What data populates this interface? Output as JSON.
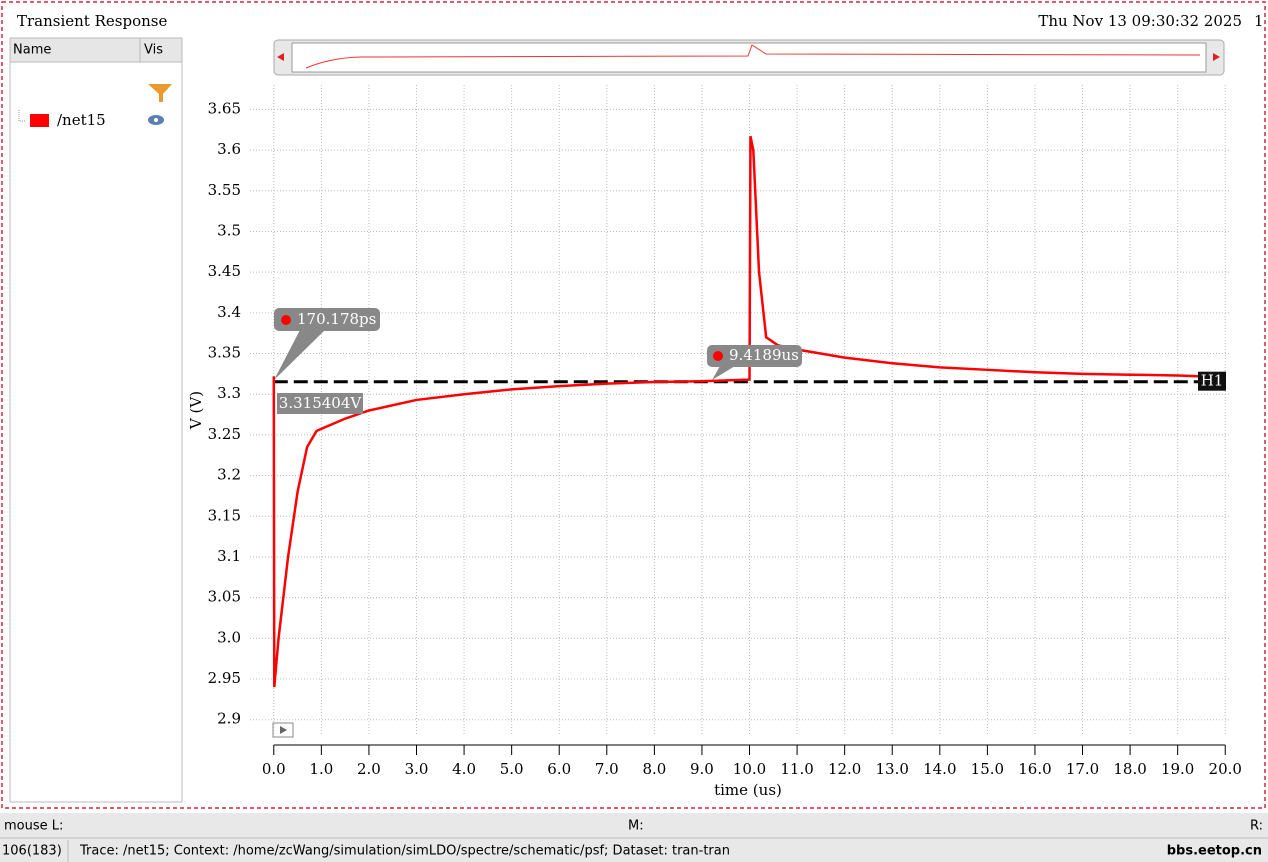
{
  "header": {
    "title": "Transient Response",
    "timestamp": "Thu Nov 13 09:30:32 2025",
    "page": "1"
  },
  "sidebar": {
    "columns": [
      "Name",
      "Vis"
    ],
    "traces": [
      "/net15"
    ]
  },
  "chart_data": {
    "type": "line",
    "xlabel": "time (us)",
    "ylabel": "V (V)",
    "xlim": [
      -0.5,
      20.1
    ],
    "ylim": [
      2.88,
      3.68
    ],
    "xticks": [
      {
        "value": 0,
        "label": "0.0"
      },
      {
        "value": 1,
        "label": "1.0"
      },
      {
        "value": 2,
        "label": "2.0"
      },
      {
        "value": 3,
        "label": "3.0"
      },
      {
        "value": 4,
        "label": "4.0"
      },
      {
        "value": 5,
        "label": "5.0"
      },
      {
        "value": 6,
        "label": "6.0"
      },
      {
        "value": 7,
        "label": "7.0"
      },
      {
        "value": 8,
        "label": "8.0"
      },
      {
        "value": 9,
        "label": "9.0"
      },
      {
        "value": 10,
        "label": "10.0"
      },
      {
        "value": 11,
        "label": "11.0"
      },
      {
        "value": 12,
        "label": "12.0"
      },
      {
        "value": 13,
        "label": "13.0"
      },
      {
        "value": 14,
        "label": "14.0"
      },
      {
        "value": 15,
        "label": "15.0"
      },
      {
        "value": 16,
        "label": "16.0"
      },
      {
        "value": 17,
        "label": "17.0"
      },
      {
        "value": 18,
        "label": "18.0"
      },
      {
        "value": 19,
        "label": "19.0"
      },
      {
        "value": 20,
        "label": "20.0"
      }
    ],
    "yticks": [
      3.65,
      3.6,
      3.55,
      3.5,
      3.45,
      3.4,
      3.35,
      3.3,
      3.25,
      3.2,
      3.15,
      3.1,
      3.05,
      {
        "value": 3.0,
        "label": "3.0"
      },
      2.95,
      2.9
    ],
    "grid": true,
    "series": [
      {
        "name": "/net15",
        "color": "#ff0000",
        "x": [
          0,
          0.01,
          0.1,
          0.3,
          0.5,
          0.7,
          0.9,
          1.5,
          2,
          3,
          4,
          5,
          6,
          7,
          8,
          9,
          10,
          10.02,
          10.08,
          10.2,
          10.35,
          10.6,
          11,
          12,
          13,
          14,
          15,
          16,
          17,
          18,
          19,
          19.5
        ],
        "values": [
          3.322,
          2.94,
          3.0,
          3.1,
          3.18,
          3.235,
          3.255,
          3.27,
          3.28,
          3.293,
          3.3,
          3.306,
          3.31,
          3.313,
          3.315,
          3.316,
          3.318,
          3.617,
          3.6,
          3.45,
          3.37,
          3.36,
          3.355,
          3.345,
          3.338,
          3.333,
          3.33,
          3.327,
          3.325,
          3.324,
          3.323,
          3.322
        ]
      }
    ],
    "hline": {
      "value": 3.315404,
      "label": "H1",
      "value_label": "3.315404V"
    },
    "markers": [
      "170.178ps",
      "9.4189us"
    ]
  },
  "statusbar": {
    "mouse_left": "mouse L:",
    "mouse_mid": "M:",
    "mouse_right": "R:",
    "count": "106(183)",
    "message": "Trace: /net15; Context: /home/zcWang/simulation/simLDO/spectre/schematic/psf; Dataset: tran-tran",
    "watermark": "bbs.eetop.cn"
  }
}
